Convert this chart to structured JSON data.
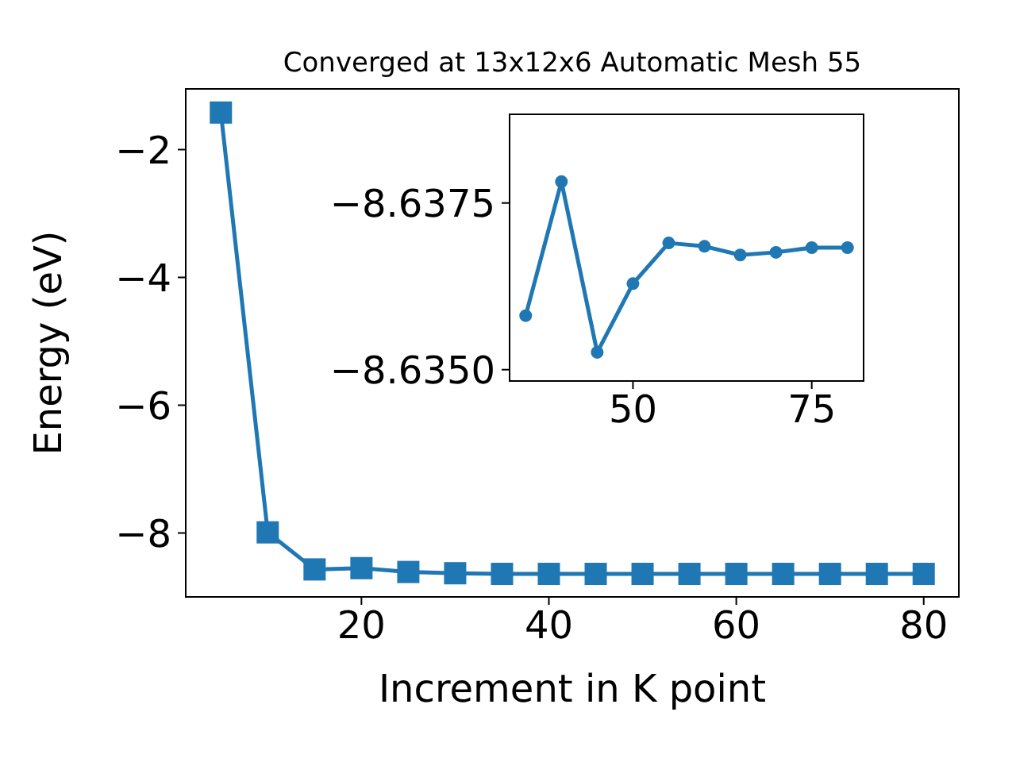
{
  "chart_data": [
    {
      "type": "line",
      "title": "Converged at 13x12x6 Automatic Mesh 55",
      "xlabel": "Increment in K point",
      "ylabel": "Energy (eV)",
      "x": [
        5,
        10,
        15,
        20,
        25,
        30,
        35,
        40,
        45,
        50,
        55,
        60,
        65,
        70,
        75,
        80
      ],
      "series": [
        {
          "color": "#1f77b4",
          "values": [
            -1.42,
            -7.99,
            -8.57,
            -8.55,
            -8.61,
            -8.63,
            -8.64,
            -8.64,
            -8.64,
            -8.64,
            -8.64,
            -8.64,
            -8.64,
            -8.64,
            -8.64,
            -8.64
          ]
        }
      ],
      "xlim": [
        1.25,
        83.75
      ],
      "ylim": [
        -9.0,
        -1.05
      ],
      "xticks": [
        20,
        40,
        60,
        80
      ],
      "yticks": [
        {
          "value": -8,
          "label": "−8"
        },
        {
          "value": -6,
          "label": "−6"
        },
        {
          "value": -4,
          "label": "−4"
        },
        {
          "value": -2,
          "label": "−2"
        }
      ],
      "marker": "square"
    },
    {
      "type": "line",
      "x": [
        35,
        40,
        45,
        50,
        55,
        60,
        65,
        70,
        75,
        80
      ],
      "series": [
        {
          "color": "#1f77b4",
          "values": [
            -8.63581,
            -8.63782,
            -8.63526,
            -8.63629,
            -8.6369,
            -8.63685,
            -8.63672,
            -8.63676,
            -8.63683,
            -8.63683
          ]
        }
      ],
      "xlim": [
        32.75,
        82.25
      ],
      "ylim": [
        -8.63483,
        -8.63883
      ],
      "xticks": [
        50,
        75
      ],
      "yticks": [
        {
          "value": -8.6375,
          "label": "−8.6375"
        },
        {
          "value": -8.635,
          "label": "−8.6350"
        }
      ],
      "marker": "circle"
    }
  ]
}
